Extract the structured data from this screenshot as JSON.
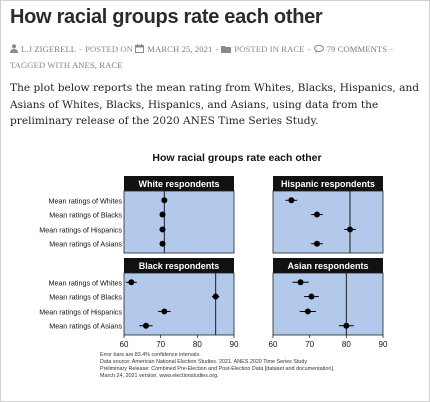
{
  "post": {
    "title": "How racial groups rate each other",
    "author": "L.J ZIGERELL",
    "posted_on_label": "POSTED ON",
    "date": "MARCH 25, 2021",
    "posted_in_label": "POSTED IN",
    "category": "RACE",
    "comments": "79 COMMENTS",
    "tagged_label": "TAGGED WITH",
    "tags": "ANES, RACE",
    "intro": "The plot below reports the mean rating from Whites, Blacks, Hispanics, and Asians of Whites, Blacks, Hispanics, and Asians, using data from the preliminary release of the 2020 ANES Time Series Study."
  },
  "icons": {
    "author": "user-icon",
    "date": "calendar-icon",
    "category": "folder-icon",
    "comments": "comment-icon"
  },
  "colors": {
    "panel_bg": "#b3c9eb",
    "panel_header": "#111111",
    "ref_line": "#1a1a1a",
    "point": "#000000"
  },
  "chart_data": {
    "type": "scatter",
    "title": "How racial groups rate each other",
    "row_labels": [
      "Mean ratings of Whites",
      "Mean ratings of Blacks",
      "Mean ratings of Hispanics",
      "Mean ratings of Asians"
    ],
    "xlim": [
      60,
      90
    ],
    "x_ticks": [
      60,
      70,
      80,
      90
    ],
    "panels": [
      {
        "title": "White respondents",
        "ref_line": 71,
        "values": [
          71,
          70.5,
          70.5,
          70.5
        ],
        "ci_half": [
          0.6,
          0.8,
          0.8,
          0.8
        ]
      },
      {
        "title": "Hispanic respondents",
        "ref_line": 81,
        "values": [
          65,
          72,
          81,
          72
        ],
        "ci_half": [
          1.6,
          1.6,
          1.6,
          1.6
        ]
      },
      {
        "title": "Black respondents",
        "ref_line": 85,
        "values": [
          62,
          85,
          71,
          66
        ],
        "ci_half": [
          1.5,
          1.0,
          1.7,
          1.8
        ]
      },
      {
        "title": "Asian respondents",
        "ref_line": 80,
        "values": [
          67.5,
          70.5,
          69.5,
          80
        ],
        "ci_half": [
          2.2,
          2.0,
          2.2,
          2.0
        ]
      }
    ],
    "notes": [
      "Error bars are 83.4% confidence intervals.",
      "Data source: American National Election Studies. 2021. ANES 2020 Time Series Study",
      "Preliminary Release: Combined Pre-Election and Post-Election Data [dataset and documentation].",
      "March 24, 2021 version. www.electionstudies.org."
    ]
  }
}
